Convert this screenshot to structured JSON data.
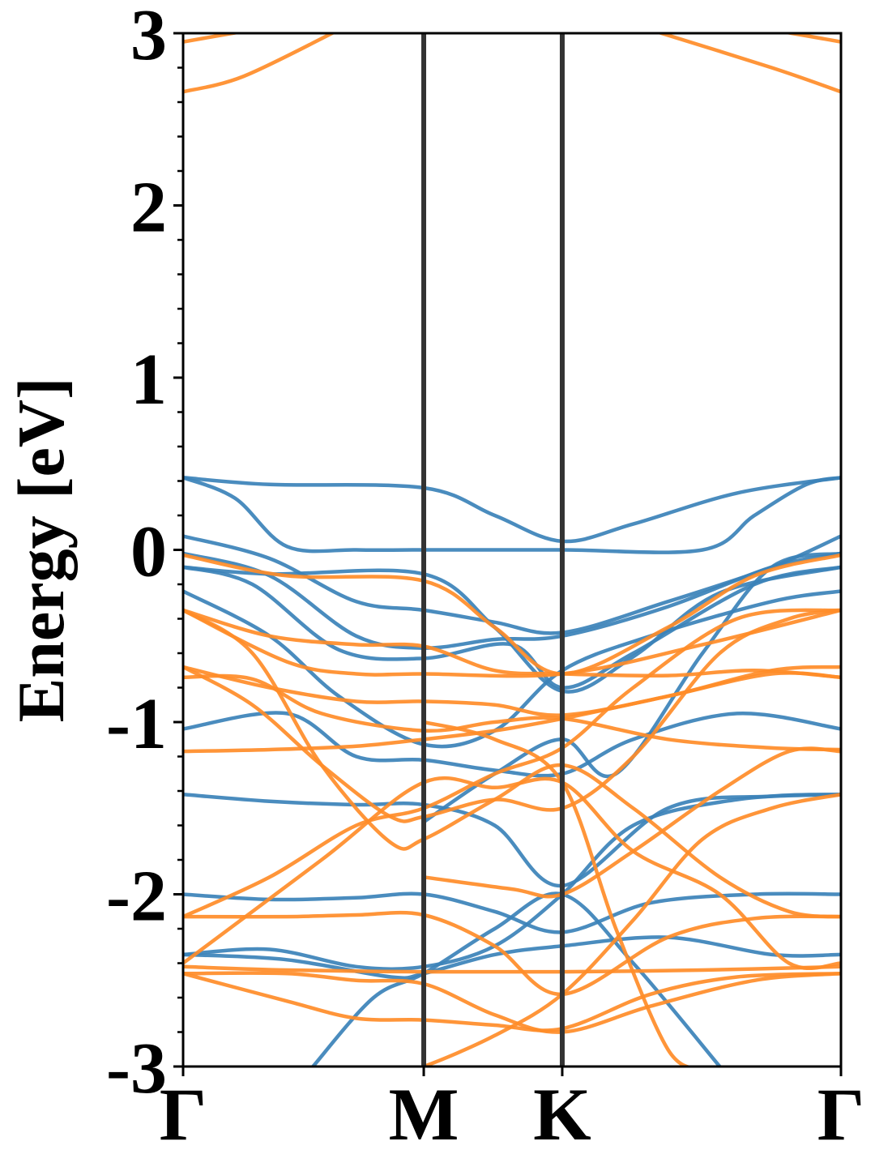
{
  "chart_data": {
    "type": "line",
    "ylabel": "Energy [eV]",
    "ylim": [
      -3,
      3
    ],
    "yticks": [
      "-3",
      "-2",
      "-1",
      "0",
      "1",
      "2",
      "3"
    ],
    "x_range": [
      0,
      3.8
    ],
    "kpoints": [
      {
        "label": "Γ",
        "x": 0
      },
      {
        "label": "M",
        "x": 1.39
      },
      {
        "label": "K",
        "x": 2.19
      },
      {
        "label": "Γ",
        "x": 3.8
      }
    ],
    "grid": false,
    "colors": {
      "blue": "#3b82b8",
      "orange": "#ff8c28",
      "kline": "#333333"
    },
    "series": [
      {
        "color": "blue",
        "points": [
          [
            0,
            0.42
          ],
          [
            0.5,
            0.38
          ],
          [
            1.39,
            0.36
          ],
          [
            1.8,
            0.2
          ],
          [
            2.19,
            0.05
          ],
          [
            2.6,
            0.15
          ],
          [
            3.2,
            0.33
          ],
          [
            3.8,
            0.42
          ]
        ]
      },
      {
        "color": "blue",
        "points": [
          [
            0,
            0.42
          ],
          [
            0.3,
            0.3
          ],
          [
            0.6,
            0.02
          ],
          [
            1.0,
            0.0
          ],
          [
            1.39,
            0.0
          ],
          [
            2.19,
            0.0
          ],
          [
            3.0,
            0.0
          ],
          [
            3.3,
            0.2
          ],
          [
            3.6,
            0.38
          ],
          [
            3.8,
            0.42
          ]
        ]
      },
      {
        "color": "blue",
        "points": [
          [
            0,
            0.08
          ],
          [
            0.5,
            -0.05
          ],
          [
            1.0,
            -0.3
          ],
          [
            1.39,
            -0.35
          ],
          [
            1.8,
            -0.42
          ],
          [
            2.19,
            -0.48
          ],
          [
            2.8,
            -0.3
          ],
          [
            3.4,
            -0.1
          ],
          [
            3.8,
            0.08
          ]
        ]
      },
      {
        "color": "blue",
        "points": [
          [
            0,
            -0.02
          ],
          [
            0.5,
            -0.15
          ],
          [
            1.0,
            -0.5
          ],
          [
            1.39,
            -0.57
          ],
          [
            1.8,
            -0.52
          ],
          [
            2.19,
            -0.5
          ],
          [
            2.8,
            -0.33
          ],
          [
            3.4,
            -0.1
          ],
          [
            3.8,
            -0.02
          ]
        ]
      },
      {
        "color": "blue",
        "points": [
          [
            0,
            -0.1
          ],
          [
            0.4,
            -0.2
          ],
          [
            0.9,
            -0.58
          ],
          [
            1.39,
            -0.63
          ],
          [
            1.9,
            -0.55
          ],
          [
            2.19,
            -0.8
          ],
          [
            2.6,
            -0.6
          ],
          [
            3.3,
            -0.2
          ],
          [
            3.8,
            -0.1
          ]
        ]
      },
      {
        "color": "blue",
        "points": [
          [
            0,
            -0.1
          ],
          [
            0.5,
            -0.14
          ],
          [
            1.39,
            -0.14
          ],
          [
            1.8,
            -0.45
          ],
          [
            2.19,
            -0.82
          ],
          [
            2.6,
            -0.62
          ],
          [
            3.1,
            -0.25
          ],
          [
            3.8,
            -0.1
          ]
        ]
      },
      {
        "color": "blue",
        "points": [
          [
            0,
            -0.24
          ],
          [
            0.5,
            -0.5
          ],
          [
            0.9,
            -0.85
          ],
          [
            1.39,
            -1.13
          ],
          [
            1.8,
            -1.05
          ],
          [
            2.19,
            -0.7
          ],
          [
            2.7,
            -0.5
          ],
          [
            3.4,
            -0.3
          ],
          [
            3.8,
            -0.24
          ]
        ]
      },
      {
        "color": "blue",
        "points": [
          [
            0,
            -1.04
          ],
          [
            0.6,
            -0.95
          ],
          [
            1.0,
            -1.2
          ],
          [
            1.39,
            -1.22
          ],
          [
            1.8,
            -1.28
          ],
          [
            2.19,
            -1.3
          ],
          [
            2.6,
            -1.1
          ],
          [
            3.2,
            -0.95
          ],
          [
            3.8,
            -1.04
          ]
        ]
      },
      {
        "color": "blue",
        "points": [
          [
            0,
            -1.42
          ],
          [
            0.5,
            -1.46
          ],
          [
            1.0,
            -1.48
          ],
          [
            1.39,
            -1.48
          ],
          [
            1.8,
            -1.6
          ],
          [
            2.19,
            -1.95
          ],
          [
            2.8,
            -1.5
          ],
          [
            3.4,
            -1.43
          ],
          [
            3.8,
            -1.42
          ]
        ]
      },
      {
        "color": "blue",
        "points": [
          [
            0,
            -2.0
          ],
          [
            0.5,
            -2.03
          ],
          [
            1.0,
            -2.02
          ],
          [
            1.39,
            -2.0
          ],
          [
            1.8,
            -2.1
          ],
          [
            2.19,
            -2.22
          ],
          [
            2.7,
            -2.05
          ],
          [
            3.3,
            -2.0
          ],
          [
            3.8,
            -2.0
          ]
        ]
      },
      {
        "color": "blue",
        "points": [
          [
            0,
            -2.35
          ],
          [
            0.5,
            -2.32
          ],
          [
            1.0,
            -2.42
          ],
          [
            1.39,
            -2.42
          ],
          [
            1.8,
            -2.3
          ],
          [
            2.19,
            -2.0
          ],
          [
            2.6,
            -1.6
          ],
          [
            3.2,
            -1.45
          ],
          [
            3.8,
            -1.42
          ]
        ]
      },
      {
        "color": "blue",
        "points": [
          [
            0,
            -2.35
          ],
          [
            0.6,
            -2.38
          ],
          [
            1.2,
            -2.48
          ],
          [
            1.39,
            -2.46
          ],
          [
            1.8,
            -2.35
          ],
          [
            2.19,
            -2.3
          ],
          [
            2.8,
            -2.25
          ],
          [
            3.4,
            -2.35
          ],
          [
            3.8,
            -2.35
          ]
        ]
      },
      {
        "color": "blue",
        "points": [
          [
            0.75,
            -3.0
          ],
          [
            1.1,
            -2.6
          ],
          [
            1.39,
            -2.46
          ],
          [
            1.8,
            -2.2
          ],
          [
            2.19,
            -2.0
          ],
          [
            2.6,
            -2.4
          ],
          [
            3.1,
            -3.0
          ]
        ]
      },
      {
        "color": "blue",
        "points": [
          [
            1.39,
            -1.58
          ],
          [
            1.8,
            -1.3
          ],
          [
            2.19,
            -1.1
          ],
          [
            2.5,
            -1.3
          ],
          [
            3.0,
            -0.6
          ],
          [
            3.4,
            -0.1
          ],
          [
            3.8,
            -0.02
          ]
        ]
      },
      {
        "color": "orange",
        "points": [
          [
            0,
            2.95
          ],
          [
            0.4,
            3.02
          ]
        ]
      },
      {
        "color": "orange",
        "points": [
          [
            0,
            2.66
          ],
          [
            0.35,
            2.75
          ],
          [
            0.9,
            3.02
          ]
        ]
      },
      {
        "color": "orange",
        "points": [
          [
            2.7,
            3.02
          ],
          [
            3.4,
            2.8
          ],
          [
            3.8,
            2.66
          ]
        ]
      },
      {
        "color": "orange",
        "points": [
          [
            3.4,
            3.02
          ],
          [
            3.8,
            2.95
          ]
        ]
      },
      {
        "color": "orange",
        "points": [
          [
            0,
            -0.03
          ],
          [
            0.6,
            -0.15
          ],
          [
            1.39,
            -0.18
          ],
          [
            1.8,
            -0.45
          ],
          [
            2.19,
            -0.72
          ],
          [
            2.8,
            -0.45
          ],
          [
            3.3,
            -0.15
          ],
          [
            3.8,
            -0.03
          ]
        ]
      },
      {
        "color": "orange",
        "points": [
          [
            0,
            -0.35
          ],
          [
            0.5,
            -0.5
          ],
          [
            1.0,
            -0.55
          ],
          [
            1.39,
            -0.56
          ],
          [
            1.8,
            -0.7
          ],
          [
            2.19,
            -0.72
          ],
          [
            2.8,
            -0.73
          ],
          [
            3.3,
            -0.7
          ],
          [
            3.8,
            -0.74
          ]
        ]
      },
      {
        "color": "orange",
        "points": [
          [
            0,
            -0.35
          ],
          [
            0.6,
            -0.65
          ],
          [
            1.0,
            -0.72
          ],
          [
            1.39,
            -0.72
          ],
          [
            2.19,
            -0.72
          ],
          [
            3.0,
            -0.55
          ],
          [
            3.8,
            -0.35
          ]
        ]
      },
      {
        "color": "orange",
        "points": [
          [
            0,
            -0.68
          ],
          [
            0.5,
            -0.8
          ],
          [
            1.0,
            -0.88
          ],
          [
            1.39,
            -0.88
          ],
          [
            1.8,
            -0.9
          ],
          [
            2.19,
            -0.96
          ],
          [
            2.8,
            -0.85
          ],
          [
            3.4,
            -0.7
          ],
          [
            3.8,
            -0.68
          ]
        ]
      },
      {
        "color": "orange",
        "points": [
          [
            0,
            -0.74
          ],
          [
            0.4,
            -0.75
          ],
          [
            0.8,
            -0.95
          ],
          [
            1.39,
            -1.05
          ],
          [
            1.8,
            -1.0
          ],
          [
            2.19,
            -0.98
          ],
          [
            2.8,
            -1.1
          ],
          [
            3.4,
            -1.15
          ],
          [
            3.8,
            -1.16
          ]
        ]
      },
      {
        "color": "orange",
        "points": [
          [
            0,
            -1.17
          ],
          [
            0.5,
            -1.16
          ],
          [
            1.0,
            -1.14
          ],
          [
            1.39,
            -1.1
          ],
          [
            1.8,
            -1.05
          ],
          [
            2.19,
            -0.98
          ],
          [
            2.8,
            -0.85
          ],
          [
            3.4,
            -0.72
          ],
          [
            3.8,
            -0.74
          ]
        ]
      },
      {
        "color": "orange",
        "points": [
          [
            0,
            -0.68
          ],
          [
            0.4,
            -0.9
          ],
          [
            0.8,
            -1.25
          ],
          [
            1.2,
            -1.55
          ],
          [
            1.39,
            -1.55
          ],
          [
            1.8,
            -1.45
          ],
          [
            2.19,
            -1.5
          ],
          [
            2.6,
            -1.2
          ],
          [
            3.1,
            -0.6
          ],
          [
            3.5,
            -0.4
          ],
          [
            3.8,
            -0.35
          ]
        ]
      },
      {
        "color": "orange",
        "points": [
          [
            0,
            -0.35
          ],
          [
            0.4,
            -0.6
          ],
          [
            0.8,
            -1.25
          ],
          [
            1.2,
            -1.7
          ],
          [
            1.39,
            -1.68
          ],
          [
            1.8,
            -1.45
          ],
          [
            2.19,
            -1.25
          ],
          [
            2.6,
            -1.5
          ],
          [
            3.1,
            -1.9
          ],
          [
            3.5,
            -2.1
          ],
          [
            3.8,
            -2.13
          ]
        ]
      },
      {
        "color": "orange",
        "points": [
          [
            0,
            -2.13
          ],
          [
            0.5,
            -1.9
          ],
          [
            1.0,
            -1.6
          ],
          [
            1.39,
            -1.5
          ],
          [
            1.8,
            -1.3
          ],
          [
            2.19,
            -1.15
          ],
          [
            2.6,
            -0.8
          ],
          [
            3.2,
            -0.4
          ],
          [
            3.8,
            -0.35
          ]
        ]
      },
      {
        "color": "orange",
        "points": [
          [
            0,
            -2.13
          ],
          [
            0.6,
            -2.13
          ],
          [
            1.0,
            -2.12
          ],
          [
            1.39,
            -2.12
          ],
          [
            1.8,
            -2.3
          ],
          [
            2.19,
            -2.58
          ],
          [
            2.8,
            -2.25
          ],
          [
            3.3,
            -2.14
          ],
          [
            3.8,
            -2.13
          ]
        ]
      },
      {
        "color": "orange",
        "points": [
          [
            0,
            -2.4
          ],
          [
            0.8,
            -1.8
          ],
          [
            1.39,
            -1.35
          ],
          [
            1.8,
            -1.38
          ],
          [
            2.19,
            -1.35
          ],
          [
            2.6,
            -1.75
          ],
          [
            3.1,
            -2.0
          ],
          [
            3.5,
            -2.4
          ],
          [
            3.8,
            -2.4
          ]
        ]
      },
      {
        "color": "orange",
        "points": [
          [
            0,
            -2.42
          ],
          [
            0.6,
            -2.44
          ],
          [
            1.39,
            -2.45
          ],
          [
            2.19,
            -2.45
          ],
          [
            3.0,
            -2.44
          ],
          [
            3.8,
            -2.42
          ]
        ]
      },
      {
        "color": "orange",
        "points": [
          [
            0,
            -2.46
          ],
          [
            0.6,
            -2.46
          ],
          [
            1.0,
            -2.5
          ],
          [
            1.39,
            -2.52
          ],
          [
            1.8,
            -2.7
          ],
          [
            2.19,
            -2.8
          ],
          [
            2.7,
            -2.65
          ],
          [
            3.3,
            -2.5
          ],
          [
            3.8,
            -2.46
          ]
        ]
      },
      {
        "color": "orange",
        "points": [
          [
            0,
            -2.46
          ],
          [
            0.6,
            -2.62
          ],
          [
            1.0,
            -2.72
          ],
          [
            1.39,
            -2.73
          ],
          [
            1.8,
            -2.76
          ],
          [
            2.19,
            -2.78
          ],
          [
            2.7,
            -2.58
          ],
          [
            3.2,
            -2.48
          ],
          [
            3.8,
            -2.46
          ]
        ]
      },
      {
        "color": "orange",
        "points": [
          [
            1.25,
            -3.02
          ],
          [
            1.39,
            -3.0
          ],
          [
            1.8,
            -2.82
          ],
          [
            2.19,
            -2.58
          ],
          [
            2.6,
            -2.15
          ],
          [
            3.0,
            -1.68
          ],
          [
            3.4,
            -1.5
          ],
          [
            3.8,
            -1.42
          ]
        ]
      },
      {
        "color": "orange",
        "points": [
          [
            1.39,
            -1.9
          ],
          [
            1.9,
            -1.97
          ],
          [
            2.19,
            -2.0
          ],
          [
            2.6,
            -1.75
          ],
          [
            3.1,
            -1.4
          ],
          [
            3.5,
            -1.17
          ],
          [
            3.8,
            -1.17
          ]
        ]
      },
      {
        "color": "orange",
        "points": [
          [
            1.39,
            -1.0
          ],
          [
            1.8,
            -1.1
          ],
          [
            2.19,
            -1.35
          ],
          [
            2.5,
            -2.2
          ],
          [
            2.8,
            -2.9
          ],
          [
            3.0,
            -3.02
          ]
        ]
      }
    ]
  }
}
